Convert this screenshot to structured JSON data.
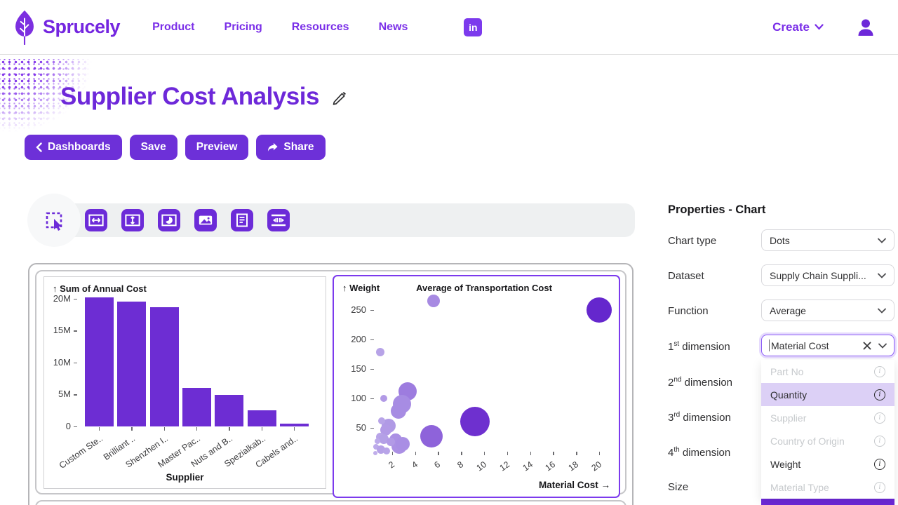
{
  "brand": {
    "name": "Sprucely"
  },
  "nav": {
    "links": [
      "Product",
      "Pricing",
      "Resources",
      "News"
    ],
    "linkedin_label": "in",
    "create_label": "Create"
  },
  "page": {
    "title": "Supplier Cost Analysis"
  },
  "actions": {
    "back": "Dashboards",
    "save": "Save",
    "preview": "Preview",
    "share": "Share"
  },
  "toolbar": {
    "tools": [
      "select-tool",
      "horizontal-resize",
      "vertical-resize",
      "add-chart",
      "add-image",
      "add-text",
      "distribute-horizontal"
    ]
  },
  "properties": {
    "title": "Properties - Chart",
    "fields": [
      {
        "label": "Chart type",
        "value": "Dots"
      },
      {
        "label": "Dataset",
        "value": "Supply Chain Suppli..."
      },
      {
        "label": "Function",
        "value": "Average"
      }
    ],
    "dim1": {
      "num": "1",
      "sup": "st",
      "rest": "dimension",
      "value": "Material Cost"
    },
    "dim2": {
      "num": "2",
      "sup": "nd",
      "rest": "dimension"
    },
    "dim3": {
      "num": "3",
      "sup": "rd",
      "rest": "dimension"
    },
    "dim4": {
      "num": "4",
      "sup": "th",
      "rest": "dimension"
    },
    "size_label": "Size",
    "dropdown": {
      "items": [
        {
          "label": "Part No",
          "state": "disabled"
        },
        {
          "label": "Quantity",
          "state": "selected"
        },
        {
          "label": "Supplier",
          "state": "disabled"
        },
        {
          "label": "Country of Origin",
          "state": "disabled"
        },
        {
          "label": "Weight",
          "state": "enabled"
        },
        {
          "label": "Material Type",
          "state": "disabled"
        }
      ]
    }
  },
  "colors": {
    "primary": "#6d30d8",
    "accent": "#7c3aed",
    "title": "#6d28d9",
    "bar": "#6d2dd3",
    "selected_row_bg": "#dcd0f6",
    "disabled_text": "#c7cacd"
  },
  "chart_data": [
    {
      "type": "bar",
      "ylabel": "↑ Sum of Annual Cost",
      "xlabel": "Supplier",
      "categories": [
        "Custom Ste..",
        "Brilliant ..",
        "Shenzhen I..",
        "Master Pac..",
        "Nuts and B..",
        "Spezialkab..",
        "Cabels and.."
      ],
      "values": [
        20.2,
        19.5,
        18.6,
        6.0,
        4.9,
        2.5,
        0.4
      ],
      "value_unit": "M",
      "yticks": [
        {
          "label": "20M",
          "value": 20
        },
        {
          "label": "15M",
          "value": 15
        },
        {
          "label": "10M",
          "value": 10
        },
        {
          "label": "5M",
          "value": 5
        },
        {
          "label": "0",
          "value": 0
        }
      ],
      "ylim": [
        0,
        20.5
      ],
      "grid": false,
      "bar_color": "#6d2dd3"
    },
    {
      "type": "scatter",
      "title": "Average of Transportation Cost",
      "ylabel": "↑ Weight",
      "xlabel": "Material Cost →",
      "xticks": [
        2,
        4,
        6,
        8,
        10,
        12,
        14,
        16,
        18,
        20
      ],
      "yticks": [
        50,
        100,
        150,
        200,
        250
      ],
      "xlim": [
        0,
        21
      ],
      "ylim": [
        0,
        270
      ],
      "grid": false,
      "points": [
        {
          "x": 5.6,
          "y": 266,
          "r": 9,
          "c": "#a78ae2"
        },
        {
          "x": 20,
          "y": 250,
          "r": 18,
          "c": "#6527cd"
        },
        {
          "x": 1.0,
          "y": 178,
          "r": 6,
          "c": "#b7a3e7"
        },
        {
          "x": 3.35,
          "y": 112,
          "r": 13,
          "c": "#9d7cdf"
        },
        {
          "x": 1.25,
          "y": 100,
          "r": 5,
          "c": "#b29ae6"
        },
        {
          "x": 2.85,
          "y": 90,
          "r": 13,
          "c": "#a78ce3"
        },
        {
          "x": 2.55,
          "y": 78,
          "r": 11,
          "c": "#a78ce3"
        },
        {
          "x": 9.2,
          "y": 61,
          "r": 21,
          "c": "#6e30cf"
        },
        {
          "x": 5.45,
          "y": 36,
          "r": 16,
          "c": "#8e63da"
        },
        {
          "x": 1.7,
          "y": 53,
          "r": 10,
          "c": "#b09ae5"
        },
        {
          "x": 1.45,
          "y": 47,
          "r": 8,
          "c": "#b29ae6"
        },
        {
          "x": 1.1,
          "y": 62,
          "r": 5,
          "c": "#b8a4e8"
        },
        {
          "x": 2.3,
          "y": 30,
          "r": 9,
          "c": "#ab90e4"
        },
        {
          "x": 2.6,
          "y": 19,
          "r": 11,
          "c": "#ab90e4"
        },
        {
          "x": 2.95,
          "y": 23,
          "r": 10,
          "c": "#a98ee4"
        },
        {
          "x": 1.0,
          "y": 34,
          "r": 6,
          "c": "#b8a4e8"
        },
        {
          "x": 1.3,
          "y": 31,
          "r": 7,
          "c": "#b4a0e6"
        },
        {
          "x": 0.75,
          "y": 27,
          "r": 4,
          "c": "#bcaaea"
        },
        {
          "x": 0.6,
          "y": 18,
          "r": 4,
          "c": "#bcaaea"
        },
        {
          "x": 1.05,
          "y": 13,
          "r": 6,
          "c": "#b6a1e7"
        },
        {
          "x": 1.55,
          "y": 11,
          "r": 5,
          "c": "#b8a4e8"
        },
        {
          "x": 1.9,
          "y": 26,
          "r": 6,
          "c": "#b29ae6"
        },
        {
          "x": 0.55,
          "y": 7,
          "r": 3,
          "c": "#c0aeea"
        }
      ]
    }
  ]
}
